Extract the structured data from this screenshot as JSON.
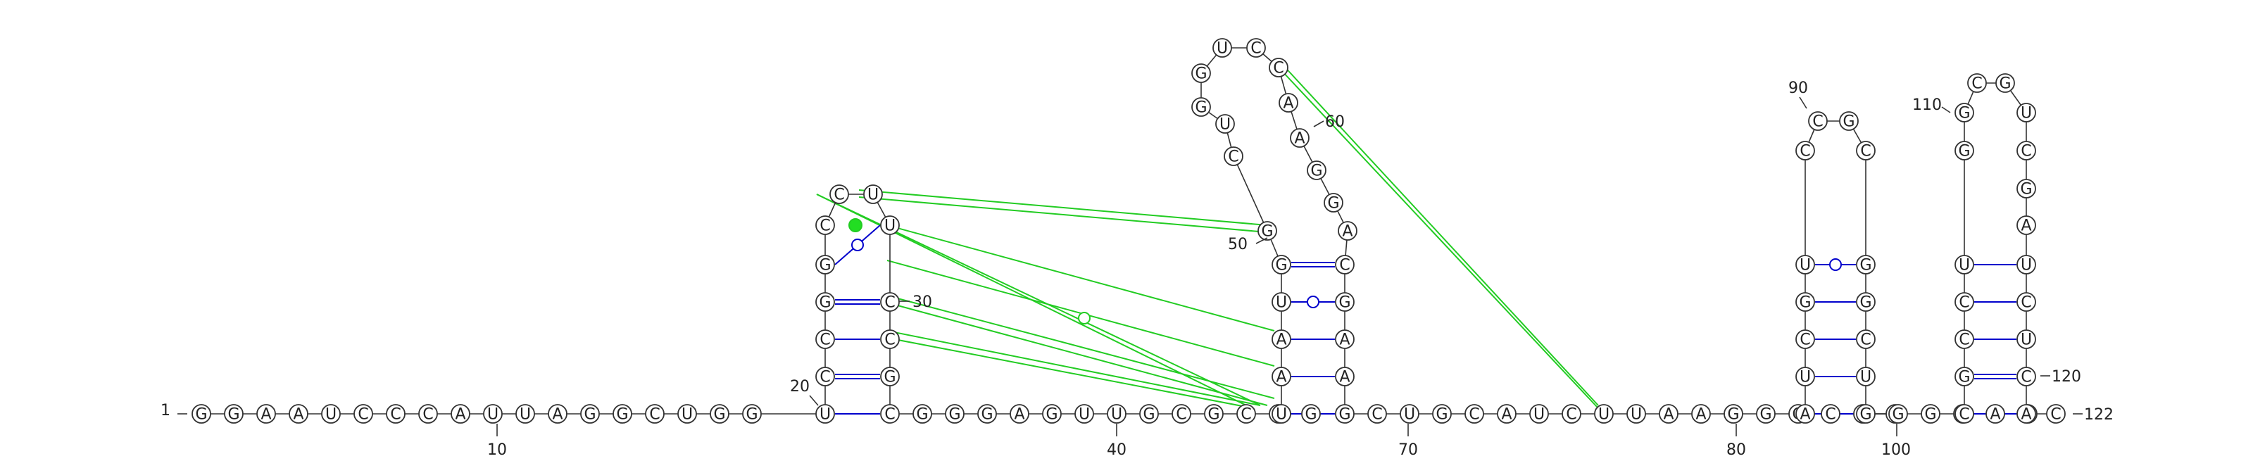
{
  "sequence": "GGAAUCCCAUUAGGCUGGUCCGGCCUUCCGCGGGAGUUGCGCGGUAAUGGCUGGUCCAAGGACGAAGCUGCAUCUUAAGGGCGCAUCGUCCGCGGCUGGGCAUCGCCUGGCGUCGAUCUCAC",
  "structure": {
    "stems": [
      {
        "pairs": [
          [
            19,
            31
          ],
          [
            20,
            30
          ],
          [
            21,
            29
          ],
          [
            22,
            28
          ],
          [
            23,
            27
          ]
        ],
        "loop_type": "hairpin"
      },
      {
        "pairs": [
          [
            45,
            67
          ],
          [
            46,
            66
          ],
          [
            47,
            65
          ],
          [
            48,
            64
          ],
          [
            49,
            63
          ]
        ],
        "loop_type": "hairpin"
      },
      {
        "pairs": [
          [
            85,
            98
          ],
          [
            86,
            97
          ],
          [
            87,
            96
          ],
          [
            88,
            95
          ],
          [
            89,
            94
          ]
        ],
        "loop_type": "hairpin"
      },
      {
        "pairs": [
          [
            104,
            121
          ],
          [
            105,
            120
          ],
          [
            106,
            119
          ],
          [
            107,
            118
          ],
          [
            108,
            117
          ]
        ],
        "loop_type": "hairpin"
      }
    ]
  },
  "labels": {
    "n1": "1",
    "n10": "10",
    "n20": "20",
    "n30": "30",
    "n40": "40",
    "n50": "50",
    "n60": "60",
    "n70": "70",
    "n80": "80",
    "n90": "90",
    "n100": "100",
    "n110": "110",
    "n120": "120",
    "n122": "122"
  },
  "colors": {
    "base_pair": "#0000cc",
    "tertiary": "#22dd22",
    "outline": "#333333"
  }
}
